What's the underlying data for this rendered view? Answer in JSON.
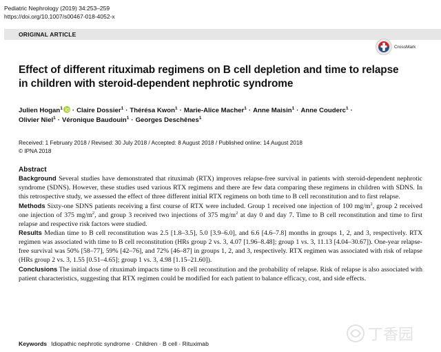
{
  "header": {
    "journal_line": "Pediatric Nephrology (2019) 34:253–259",
    "doi": "https://doi.org/10.1007/s00467-018-4052-x"
  },
  "article_type": "ORIGINAL ARTICLE",
  "crossmark": {
    "label": "CrossMark",
    "icon": "crossmark-icon"
  },
  "title": "Effect of different rituximab regimens on B cell depletion and time to relapse in children with steroid-dependent nephrotic syndrome",
  "authors": [
    {
      "name": "Julien Hogan",
      "aff": "1",
      "orcid": true
    },
    {
      "name": "Claire Dossier",
      "aff": "1"
    },
    {
      "name": "Thérésa Kwon",
      "aff": "1"
    },
    {
      "name": "Marie-Alice Macher",
      "aff": "1"
    },
    {
      "name": "Anne Maisin",
      "aff": "1"
    },
    {
      "name": "Anne Couderc",
      "aff": "1"
    },
    {
      "name": "Olivier Niel",
      "aff": "1"
    },
    {
      "name": "Véronique Baudouin",
      "aff": "1"
    },
    {
      "name": "Georges Deschênes",
      "aff": "1"
    }
  ],
  "dates": {
    "line": "Received: 1 February 2018 / Revised: 30 July 2018 / Accepted: 8 August 2018 / Published online: 14 August 2018",
    "copyright": "© IPNA 2018"
  },
  "abstract": {
    "heading": "Abstract",
    "background_label": "Background",
    "background_text": "Several studies have demonstrated that rituximab (RTX) improves relapse-free survival in patients with steroid-dependent nephrotic syndrome (SDNS). However, these studies used various RTX regimens and there are few data comparing these regimens in children with SDNS. In this retrospective study, we assessed the effect of three different initial RTX regimens on both time to B cell reconstitution and to first relapse.",
    "methods_label": "Methods",
    "methods_text_1": "Sixty-one SDNS patients receiving a first course of RTX were included. Group 1 received one injection of 100 mg/m",
    "methods_text_2": ", group 2 received one injection of 375 mg/m",
    "methods_text_3": ", and group 3 received two injections of 375 mg/m",
    "methods_text_4": " at day 0 and day 7. Time to B cell reconstitution and time to first relapse and respective risk factors were studied.",
    "squared_mark": "2",
    "results_label": "Results",
    "results_text": "Median time to B cell reconstitution was 2.5 [1.8–3.5], 5.0 [3.9–6.0], and 6.6 [4.6–7.8] months in groups 1, 2, and 3, respectively. RTX regimen was associated with time to B cell reconstitution (HRs group 2 vs. 3, 4.07 [1.96–8.48]; group 1 vs. 3, 11.13 [4.04–30.67]). One-year relapse-free survival was 50% [58–77], 59% [42–76], and 72% [46–87] in groups 1, 2, and 3, respectively. RTX regimen was associated with risk of relapse (HRs group 2 vs. 3, 1.55 [0.51–4.65]; group 1 vs. 3, 4.98 [1.15–21.60]).",
    "conclusions_label": "Conclusions",
    "conclusions_text": "The initial dose of rituximab impacts time to B cell reconstitution and the probability of relapse. Risk of relapse is also associated with patient characteristics, suggesting that RTX regimen could be modified for each patient to balance efficacy, cost, and side effects."
  },
  "keywords": {
    "label": "Keywords",
    "items": "Idiopathic nephrotic syndrome · Children · B cell · Rituximab"
  },
  "watermark": {
    "text": "丁香园",
    "icon": "dxy-logo-icon"
  },
  "colors": {
    "band": "#e6e6e6",
    "orcid": "#a6ce39",
    "crossmark_red": "#c1272d"
  }
}
